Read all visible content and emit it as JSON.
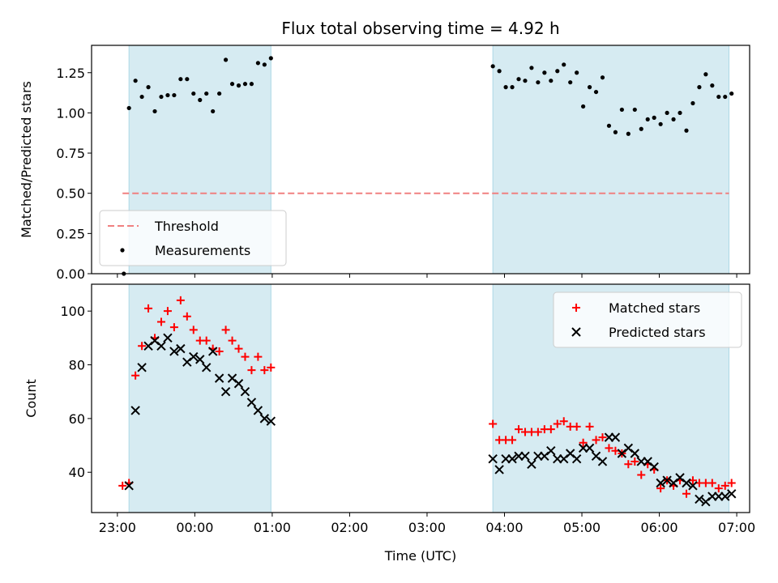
{
  "chart_data": {
    "title": "Flux total observing time = 4.92 h",
    "xlabel": "Time (UTC)",
    "x_axis": {
      "ticks": [
        0,
        60,
        120,
        180,
        240,
        300,
        360,
        420,
        480
      ],
      "tick_labels": [
        "23:00",
        "00:00",
        "01:00",
        "02:00",
        "03:00",
        "04:00",
        "05:00",
        "06:00",
        "07:00"
      ],
      "range": [
        -20,
        490
      ]
    },
    "shaded_intervals": [
      [
        9,
        119
      ],
      [
        291,
        474
      ]
    ],
    "shade_color": "#add8e6",
    "panels": [
      {
        "type": "scatter",
        "ylabel": "Matched/Predicted stars",
        "ylim": [
          0,
          1.42
        ],
        "yticks": [
          0,
          0.25,
          0.5,
          0.75,
          1.0,
          1.25
        ],
        "ytick_labels": [
          "0.00",
          "0.25",
          "0.50",
          "0.75",
          "1.00",
          "1.25"
        ],
        "legend_position": "lower-left",
        "threshold": {
          "name": "Threshold",
          "value": 0.5,
          "x_range": [
            4,
            474
          ],
          "color": "#f08080"
        },
        "series": [
          {
            "name": "Measurements",
            "marker": "dot",
            "color": "#000000",
            "points": [
              [
                5,
                0.0
              ],
              [
                9,
                1.03
              ],
              [
                14,
                1.2
              ],
              [
                19,
                1.1
              ],
              [
                24,
                1.16
              ],
              [
                29,
                1.01
              ],
              [
                34,
                1.1
              ],
              [
                39,
                1.11
              ],
              [
                44,
                1.11
              ],
              [
                49,
                1.21
              ],
              [
                54,
                1.21
              ],
              [
                59,
                1.12
              ],
              [
                64,
                1.08
              ],
              [
                69,
                1.12
              ],
              [
                74,
                1.01
              ],
              [
                79,
                1.12
              ],
              [
                84,
                1.33
              ],
              [
                89,
                1.18
              ],
              [
                94,
                1.17
              ],
              [
                99,
                1.18
              ],
              [
                104,
                1.18
              ],
              [
                109,
                1.31
              ],
              [
                114,
                1.3
              ],
              [
                119,
                1.34
              ],
              [
                291,
                1.29
              ],
              [
                296,
                1.26
              ],
              [
                301,
                1.16
              ],
              [
                306,
                1.16
              ],
              [
                311,
                1.21
              ],
              [
                316,
                1.2
              ],
              [
                321,
                1.28
              ],
              [
                326,
                1.19
              ],
              [
                331,
                1.25
              ],
              [
                336,
                1.2
              ],
              [
                341,
                1.26
              ],
              [
                346,
                1.3
              ],
              [
                351,
                1.19
              ],
              [
                356,
                1.25
              ],
              [
                361,
                1.04
              ],
              [
                366,
                1.16
              ],
              [
                371,
                1.13
              ],
              [
                376,
                1.22
              ],
              [
                381,
                0.92
              ],
              [
                386,
                0.88
              ],
              [
                391,
                1.02
              ],
              [
                396,
                0.87
              ],
              [
                401,
                1.02
              ],
              [
                406,
                0.9
              ],
              [
                411,
                0.96
              ],
              [
                416,
                0.97
              ],
              [
                421,
                0.93
              ],
              [
                426,
                1.0
              ],
              [
                431,
                0.96
              ],
              [
                436,
                1.0
              ],
              [
                441,
                0.89
              ],
              [
                446,
                1.06
              ],
              [
                451,
                1.16
              ],
              [
                456,
                1.24
              ],
              [
                461,
                1.17
              ],
              [
                466,
                1.1
              ],
              [
                471,
                1.1
              ],
              [
                476,
                1.12
              ]
            ]
          }
        ]
      },
      {
        "type": "scatter",
        "ylabel": "Count",
        "ylim": [
          25,
          110
        ],
        "yticks": [
          40,
          60,
          80,
          100
        ],
        "ytick_labels": [
          "40",
          "60",
          "80",
          "100"
        ],
        "legend_position": "upper-right",
        "series": [
          {
            "name": "Matched stars",
            "marker": "plus",
            "color": "#ff0000",
            "points": [
              [
                4,
                35
              ],
              [
                9,
                36
              ],
              [
                14,
                76
              ],
              [
                19,
                87
              ],
              [
                24,
                101
              ],
              [
                29,
                90
              ],
              [
                34,
                96
              ],
              [
                39,
                100
              ],
              [
                44,
                94
              ],
              [
                49,
                104
              ],
              [
                54,
                98
              ],
              [
                59,
                93
              ],
              [
                64,
                89
              ],
              [
                69,
                89
              ],
              [
                74,
                86
              ],
              [
                79,
                85
              ],
              [
                84,
                93
              ],
              [
                89,
                89
              ],
              [
                94,
                86
              ],
              [
                99,
                83
              ],
              [
                104,
                78
              ],
              [
                109,
                83
              ],
              [
                114,
                78
              ],
              [
                119,
                79
              ],
              [
                291,
                58
              ],
              [
                296,
                52
              ],
              [
                301,
                52
              ],
              [
                306,
                52
              ],
              [
                311,
                56
              ],
              [
                316,
                55
              ],
              [
                321,
                55
              ],
              [
                326,
                55
              ],
              [
                331,
                56
              ],
              [
                336,
                56
              ],
              [
                341,
                58
              ],
              [
                346,
                59
              ],
              [
                351,
                57
              ],
              [
                356,
                57
              ],
              [
                361,
                51
              ],
              [
                366,
                57
              ],
              [
                371,
                52
              ],
              [
                376,
                53
              ],
              [
                381,
                49
              ],
              [
                386,
                48
              ],
              [
                391,
                47
              ],
              [
                396,
                43
              ],
              [
                401,
                44
              ],
              [
                406,
                39
              ],
              [
                411,
                43
              ],
              [
                416,
                41
              ],
              [
                421,
                34
              ],
              [
                426,
                37
              ],
              [
                431,
                35
              ],
              [
                436,
                37
              ],
              [
                441,
                32
              ],
              [
                446,
                37
              ],
              [
                451,
                36
              ],
              [
                456,
                36
              ],
              [
                461,
                36
              ],
              [
                466,
                34
              ],
              [
                471,
                35
              ],
              [
                476,
                36
              ]
            ]
          },
          {
            "name": "Predicted stars",
            "marker": "x",
            "color": "#000000",
            "points": [
              [
                9,
                35
              ],
              [
                14,
                63
              ],
              [
                19,
                79
              ],
              [
                24,
                87
              ],
              [
                29,
                89
              ],
              [
                34,
                87
              ],
              [
                39,
                90
              ],
              [
                44,
                85
              ],
              [
                49,
                86
              ],
              [
                54,
                81
              ],
              [
                59,
                83
              ],
              [
                64,
                82
              ],
              [
                69,
                79
              ],
              [
                74,
                85
              ],
              [
                79,
                75
              ],
              [
                84,
                70
              ],
              [
                89,
                75
              ],
              [
                94,
                73
              ],
              [
                99,
                70
              ],
              [
                104,
                66
              ],
              [
                109,
                63
              ],
              [
                114,
                60
              ],
              [
                119,
                59
              ],
              [
                291,
                45
              ],
              [
                296,
                41
              ],
              [
                301,
                45
              ],
              [
                306,
                45
              ],
              [
                311,
                46
              ],
              [
                316,
                46
              ],
              [
                321,
                43
              ],
              [
                326,
                46
              ],
              [
                331,
                46
              ],
              [
                336,
                48
              ],
              [
                341,
                45
              ],
              [
                346,
                45
              ],
              [
                351,
                47
              ],
              [
                356,
                45
              ],
              [
                361,
                49
              ],
              [
                366,
                49
              ],
              [
                371,
                46
              ],
              [
                376,
                44
              ],
              [
                381,
                53
              ],
              [
                386,
                53
              ],
              [
                391,
                47
              ],
              [
                396,
                49
              ],
              [
                401,
                47
              ],
              [
                406,
                44
              ],
              [
                411,
                44
              ],
              [
                416,
                42
              ],
              [
                421,
                36
              ],
              [
                426,
                37
              ],
              [
                431,
                36
              ],
              [
                436,
                38
              ],
              [
                441,
                36
              ],
              [
                446,
                35
              ],
              [
                451,
                30
              ],
              [
                456,
                29
              ],
              [
                461,
                31
              ],
              [
                466,
                31
              ],
              [
                471,
                31
              ],
              [
                476,
                32
              ]
            ]
          }
        ]
      }
    ]
  }
}
